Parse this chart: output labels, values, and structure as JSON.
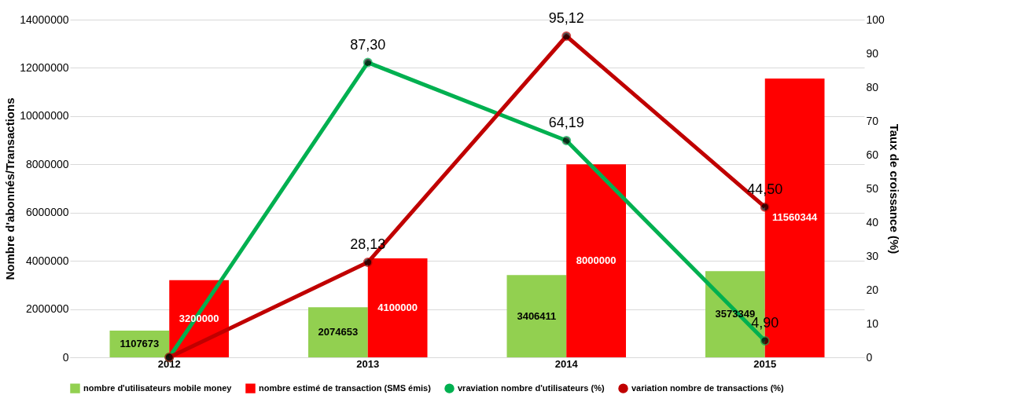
{
  "chart_data": {
    "type": "bar",
    "categories": [
      "2012",
      "2013",
      "2014",
      "2015"
    ],
    "ylabel": "Nombre d'abonnés/Transactions",
    "y2label": "Taux de croissance (%)",
    "ylim": [
      0,
      14000000
    ],
    "yticks": [
      0,
      2000000,
      4000000,
      6000000,
      8000000,
      10000000,
      12000000,
      14000000
    ],
    "y2lim": [
      0,
      100
    ],
    "y2ticks": [
      0,
      10,
      20,
      30,
      40,
      50,
      60,
      70,
      80,
      90,
      100
    ],
    "grid": "y",
    "legend": "bottom",
    "marker": "circle",
    "series": [
      {
        "name": "nombre d'utilisateurs mobile money",
        "color": "#92d050",
        "values": [
          1107673,
          2074653,
          3406411,
          3573349
        ],
        "value_labels": [
          "1107673",
          "2074653",
          "3406411",
          "3573349"
        ]
      },
      {
        "name": "nombre estimé de transaction (SMS émis)",
        "color": "#ff0000",
        "values": [
          3200000,
          4100000,
          8000000,
          11560344
        ],
        "value_labels": [
          "3200000",
          "4100000",
          "8000000",
          "11560344"
        ]
      },
      {
        "name": "vraviation nombre d'utilisateurs (%)",
        "type": "line",
        "axis": "y2",
        "color": "#00b050",
        "values": [
          0,
          87.3,
          64.19,
          4.9
        ],
        "value_labels": [
          null,
          "87,30",
          "64,19",
          "4,90"
        ]
      },
      {
        "name": "variation nombre de transactions (%)",
        "type": "line",
        "axis": "y2",
        "color": "#c00000",
        "values": [
          0,
          28.13,
          95.12,
          44.5
        ],
        "value_labels": [
          null,
          "28,13",
          "95,12",
          "44,50"
        ]
      }
    ]
  }
}
